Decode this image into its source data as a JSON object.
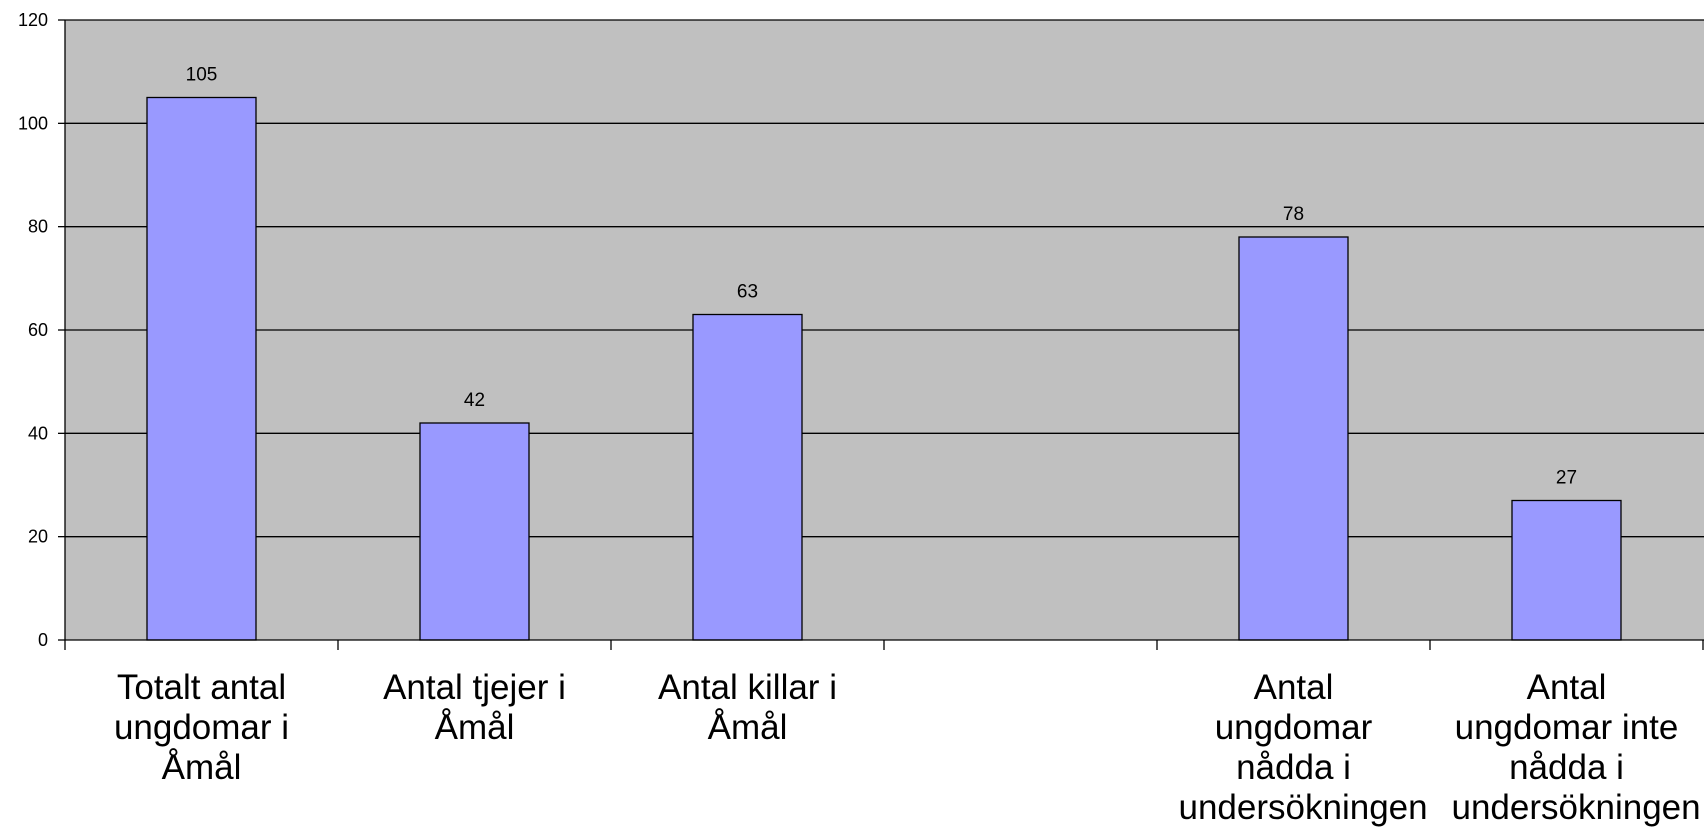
{
  "chart_data": {
    "type": "bar",
    "categories": [
      "Totalt antal ungdomar i Åmål",
      "Antal tjejer i Åmål",
      "Antal killar i Åmål",
      "",
      "Antal ungdomar nådda i undersökningen",
      "Antal ungdomar inte nådda i undersökningen"
    ],
    "values": [
      105,
      42,
      63,
      null,
      78,
      27
    ],
    "data_labels": [
      "105",
      "42",
      "63",
      "",
      "78",
      "27"
    ],
    "ylim": [
      0,
      120
    ],
    "yticks": [
      0,
      20,
      40,
      60,
      80,
      100,
      120
    ],
    "grid": true,
    "colors": {
      "bar": "#9999ff",
      "plot_bg": "#c0c0c0",
      "gridline": "#000000"
    }
  }
}
